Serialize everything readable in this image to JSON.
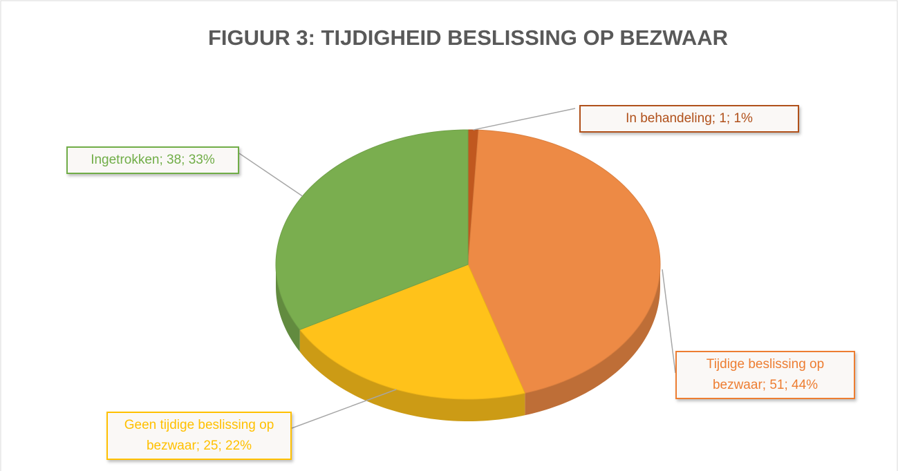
{
  "chart_data": {
    "type": "pie",
    "title": "FIGUUR 3: TIJDIGHEID BESLISSING OP BEZWAAR",
    "categories": [
      "In behandeling",
      "Tijdige beslissing op bezwaar",
      "Geen tijdige beslissing op bezwaar",
      "Ingetrokken"
    ],
    "values": [
      1,
      51,
      25,
      38
    ],
    "value_labels": [
      "In behandeling; 1; 1%",
      "Tijdige beslissing op bezwaar; 51; 44%",
      "Geen tijdige beslissing op bezwaar; 25; 22%",
      "Ingetrokken; 38; 33%"
    ],
    "colors": [
      "#c0581f",
      "#ed8a45",
      "#ffc21a",
      "#7aae4f"
    ],
    "label_colors": [
      "#b0501a",
      "#ed7d31",
      "#ffc000",
      "#70ad47"
    ]
  }
}
